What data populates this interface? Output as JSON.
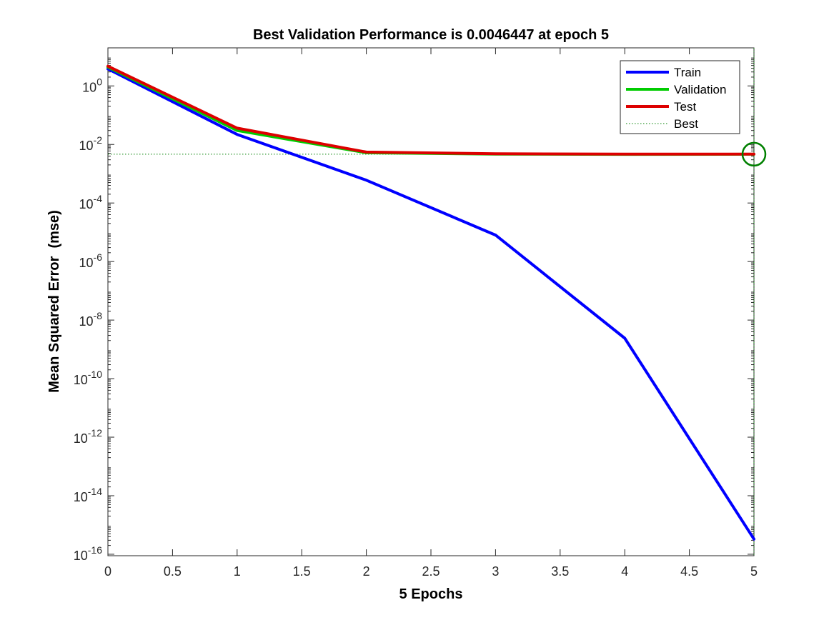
{
  "chart_data": {
    "type": "line",
    "title": "Best Validation Performance is 0.0046447 at epoch 5",
    "xlabel": "5 Epochs",
    "ylabel": "Mean Squared Error  (mse)",
    "xlim": [
      0,
      5
    ],
    "ylim_log10": [
      -16,
      1
    ],
    "yscale": "log",
    "grid": false,
    "legend_position": "top-right",
    "x_ticks": [
      "0",
      "0.5",
      "1",
      "1.5",
      "2",
      "2.5",
      "3",
      "3.5",
      "4",
      "4.5",
      "5"
    ],
    "y_ticks": [
      {
        "exp": 0,
        "base": "10",
        "power": "0"
      },
      {
        "exp": -2,
        "base": "10",
        "power": "-2"
      },
      {
        "exp": -4,
        "base": "10",
        "power": "-4"
      },
      {
        "exp": -6,
        "base": "10",
        "power": "-6"
      },
      {
        "exp": -8,
        "base": "10",
        "power": "-8"
      },
      {
        "exp": -10,
        "base": "10",
        "power": "-10"
      },
      {
        "exp": -12,
        "base": "10",
        "power": "-12"
      },
      {
        "exp": -14,
        "base": "10",
        "power": "-14"
      },
      {
        "exp": -16,
        "base": "10",
        "power": "-16"
      }
    ],
    "x": [
      0,
      1,
      2,
      3,
      4,
      5
    ],
    "series": [
      {
        "name": "Train",
        "color": "#0000ff",
        "values": [
          3.8,
          0.022,
          0.0006,
          8e-06,
          2.4e-09,
          3.3e-16
        ]
      },
      {
        "name": "Validation",
        "color": "#00cc00",
        "values": [
          4.4,
          0.03,
          0.0052,
          0.0047,
          0.0046,
          0.0046447
        ]
      },
      {
        "name": "Test",
        "color": "#dd0000",
        "values": [
          4.7,
          0.036,
          0.0055,
          0.0048,
          0.0047,
          0.0047
        ]
      }
    ],
    "best": {
      "name": "Best",
      "epoch": 5,
      "value": 0.0046447,
      "color": "#008000"
    }
  }
}
